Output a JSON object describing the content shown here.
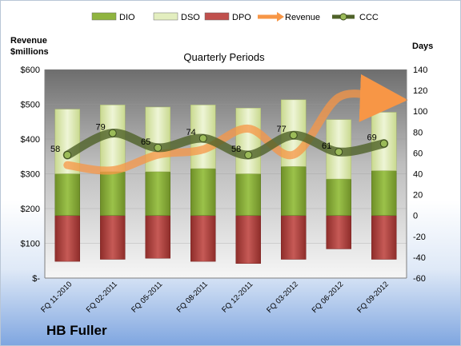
{
  "chart_data": {
    "type": "bar",
    "title": "Quarterly Periods",
    "brand": "HB Fuller",
    "y_left_label_line1": "Revenue",
    "y_left_label_line2": "$millions",
    "y_right_label": "Days",
    "categories": [
      "FQ 11-2010",
      "FQ 02-2011",
      "FQ 05-2011",
      "FQ 08-2011",
      "FQ 12-2011",
      "FQ 03-2012",
      "FQ 06-2012",
      "FQ 09-2012"
    ],
    "y_left_ticks": [
      "$-",
      "$100",
      "$200",
      "$300",
      "$400",
      "$500",
      "$600"
    ],
    "y_left_lim": [
      0,
      600
    ],
    "y_right_ticks": [
      "-60",
      "-40",
      "-20",
      "0",
      "20",
      "40",
      "60",
      "80",
      "100",
      "120",
      "140"
    ],
    "y_right_lim": [
      -60,
      140
    ],
    "grid": true,
    "legend_position": "top",
    "series": [
      {
        "name": "DIO",
        "axis": "right",
        "type": "stacked-bar",
        "color": "#8fb43f",
        "values": [
          40,
          42,
          42,
          45,
          40,
          47,
          35,
          43
        ]
      },
      {
        "name": "DSO",
        "axis": "right",
        "type": "stacked-bar",
        "color": "#e3eebf",
        "values": [
          62,
          64,
          62,
          61,
          63,
          64,
          57,
          56
        ]
      },
      {
        "name": "DPO",
        "axis": "right",
        "type": "bar-negative",
        "color": "#c0504d",
        "values": [
          -44,
          -42,
          -41,
          -44,
          -46,
          -42,
          -32,
          -42
        ]
      },
      {
        "name": "Revenue",
        "axis": "left",
        "type": "line",
        "color": "#f79646",
        "values": [
          325,
          310,
          355,
          370,
          430,
          355,
          520,
          515
        ]
      },
      {
        "name": "CCC",
        "axis": "right",
        "type": "line",
        "color": "#4f6228",
        "values": [
          58,
          79,
          65,
          74,
          58,
          77,
          61,
          69
        ]
      }
    ],
    "ccc_labels": [
      "58",
      "79",
      "65",
      "74",
      "58",
      "77",
      "61",
      "69"
    ]
  },
  "legend": [
    {
      "label": "DIO",
      "icon": "bar-swatch-icon",
      "color": "#8fb43f"
    },
    {
      "label": "DSO",
      "icon": "bar-swatch-icon",
      "color": "#e3eebf"
    },
    {
      "label": "DPO",
      "icon": "bar-swatch-icon",
      "color": "#c0504d"
    },
    {
      "label": "Revenue",
      "icon": "arrow-line-icon",
      "color": "#f79646"
    },
    {
      "label": "CCC",
      "icon": "line-marker-icon",
      "color": "#4f6228"
    }
  ]
}
